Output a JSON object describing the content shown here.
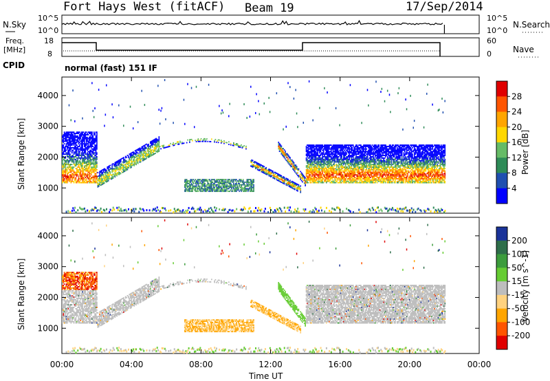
{
  "header": {
    "radar": "Fort Hays West (fitACF)",
    "beam": "Beam 19",
    "date": "17/Sep/2014"
  },
  "panels": {
    "nsky": {
      "label": "N.Sky",
      "ticks": [
        "10^5",
        "10^0"
      ]
    },
    "nsearch": {
      "label": "N.Search",
      "ticks": [
        "10^5",
        "10^0"
      ]
    },
    "freq": {
      "label_line1": "Freq.",
      "label_line2": "[MHz]",
      "ticks": [
        "18",
        "8"
      ]
    },
    "nave": {
      "label": "Nave",
      "ticks": [
        "60",
        "0"
      ]
    },
    "cpid": {
      "label": "CPID",
      "value": "normal (fast) 151 IF"
    }
  },
  "chart_data": [
    {
      "type": "heatmap",
      "name": "power",
      "xlabel": "Time UT",
      "ylabel": "Slant Range [km]",
      "x_ticks": [
        "00:00",
        "04:00",
        "08:00",
        "12:00",
        "16:00",
        "20:00",
        "00:00"
      ],
      "xlim_hours": [
        0,
        24
      ],
      "ylim_km": [
        180,
        4600
      ],
      "y_ticks": [
        1000,
        2000,
        3000,
        4000
      ],
      "colorbar": {
        "label": "Power [dB]",
        "ticks": [
          4,
          8,
          12,
          16,
          20,
          24,
          28
        ],
        "range": [
          0,
          32
        ],
        "colors": [
          "#0000ff",
          "#1f4fb0",
          "#2e8b57",
          "#66bb66",
          "#ffd700",
          "#ffa500",
          "#ff5500",
          "#e00000"
        ]
      },
      "features": [
        {
          "from_h": 0.0,
          "to_h": 2.0,
          "range_km": [
            1100,
            2800
          ],
          "note": "high power E/F-region backscatter"
        },
        {
          "from_h": 2.0,
          "to_h": 5.5,
          "range_km": [
            1000,
            2700
          ],
          "note": "rising band"
        },
        {
          "from_h": 7.0,
          "to_h": 11.0,
          "range_km": [
            850,
            1300
          ],
          "note": "near-range band"
        },
        {
          "from_h": 11.0,
          "to_h": 14.0,
          "range_km": [
            900,
            2400
          ],
          "note": "converging echoes"
        },
        {
          "from_h": 14.0,
          "to_h": 22.0,
          "range_km": [
            1100,
            2400
          ],
          "note": "broad band"
        }
      ]
    },
    {
      "type": "heatmap",
      "name": "velocity",
      "xlabel": "Time UT",
      "ylabel": "Slant Range [km]",
      "x_ticks": [
        "00:00",
        "04:00",
        "08:00",
        "12:00",
        "16:00",
        "20:00",
        "00:00"
      ],
      "xlim_hours": [
        0,
        24
      ],
      "ylim_km": [
        180,
        4600
      ],
      "y_ticks": [
        1000,
        2000,
        3000,
        4000
      ],
      "colorbar": {
        "label": "Velocity [m s^-1]",
        "ticks": [
          200,
          100,
          50,
          15,
          -15,
          -50,
          -100,
          -200
        ],
        "colors": [
          "#1a3399",
          "#2e6e4a",
          "#3c9c3c",
          "#66cc33",
          "#bdbdbd",
          "#ffd27f",
          "#ffa500",
          "#ff5500",
          "#e00000"
        ]
      }
    }
  ]
}
